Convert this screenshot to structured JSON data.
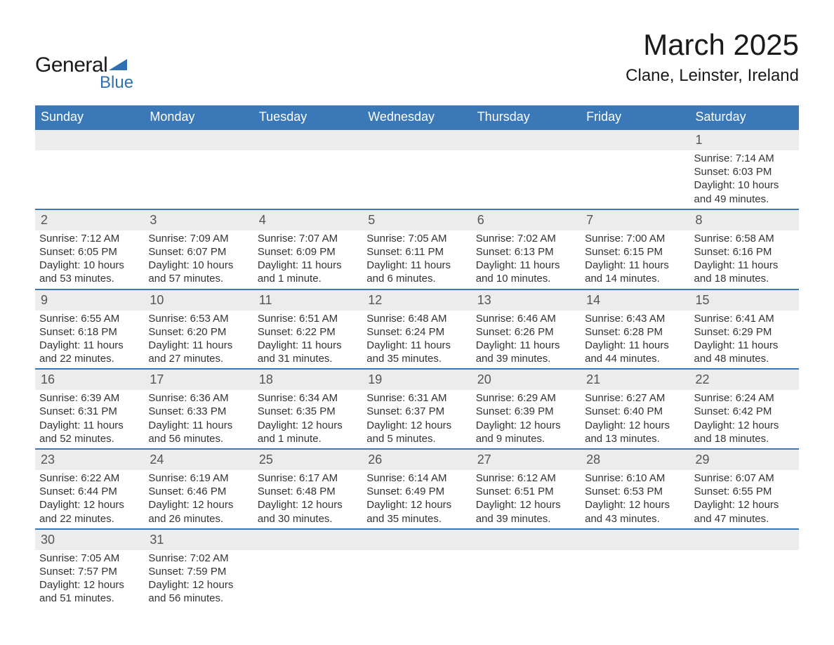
{
  "logo": {
    "line1": "General",
    "line2": "Blue"
  },
  "title": "March 2025",
  "location": "Clane, Leinster, Ireland",
  "weekdays": [
    "Sunday",
    "Monday",
    "Tuesday",
    "Wednesday",
    "Thursday",
    "Friday",
    "Saturday"
  ],
  "labels": {
    "sunrise": "Sunrise: ",
    "sunset": "Sunset: ",
    "daylight": "Daylight: "
  },
  "style": {
    "header_bg": "#3a78b8",
    "header_fg": "#ffffff",
    "daynum_bg": "#ececec",
    "daynum_border": "#3a78b8",
    "text_color": "#333333",
    "font_family": "Arial, Helvetica, sans-serif",
    "month_title_size_pt": 32,
    "location_size_pt": 18,
    "weekday_size_pt": 14,
    "cell_size_pt": 11
  },
  "weeks": [
    [
      null,
      null,
      null,
      null,
      null,
      null,
      {
        "n": "1",
        "sr": "7:14 AM",
        "ss": "6:03 PM",
        "dl": "10 hours and 49 minutes."
      }
    ],
    [
      {
        "n": "2",
        "sr": "7:12 AM",
        "ss": "6:05 PM",
        "dl": "10 hours and 53 minutes."
      },
      {
        "n": "3",
        "sr": "7:09 AM",
        "ss": "6:07 PM",
        "dl": "10 hours and 57 minutes."
      },
      {
        "n": "4",
        "sr": "7:07 AM",
        "ss": "6:09 PM",
        "dl": "11 hours and 1 minute."
      },
      {
        "n": "5",
        "sr": "7:05 AM",
        "ss": "6:11 PM",
        "dl": "11 hours and 6 minutes."
      },
      {
        "n": "6",
        "sr": "7:02 AM",
        "ss": "6:13 PM",
        "dl": "11 hours and 10 minutes."
      },
      {
        "n": "7",
        "sr": "7:00 AM",
        "ss": "6:15 PM",
        "dl": "11 hours and 14 minutes."
      },
      {
        "n": "8",
        "sr": "6:58 AM",
        "ss": "6:16 PM",
        "dl": "11 hours and 18 minutes."
      }
    ],
    [
      {
        "n": "9",
        "sr": "6:55 AM",
        "ss": "6:18 PM",
        "dl": "11 hours and 22 minutes."
      },
      {
        "n": "10",
        "sr": "6:53 AM",
        "ss": "6:20 PM",
        "dl": "11 hours and 27 minutes."
      },
      {
        "n": "11",
        "sr": "6:51 AM",
        "ss": "6:22 PM",
        "dl": "11 hours and 31 minutes."
      },
      {
        "n": "12",
        "sr": "6:48 AM",
        "ss": "6:24 PM",
        "dl": "11 hours and 35 minutes."
      },
      {
        "n": "13",
        "sr": "6:46 AM",
        "ss": "6:26 PM",
        "dl": "11 hours and 39 minutes."
      },
      {
        "n": "14",
        "sr": "6:43 AM",
        "ss": "6:28 PM",
        "dl": "11 hours and 44 minutes."
      },
      {
        "n": "15",
        "sr": "6:41 AM",
        "ss": "6:29 PM",
        "dl": "11 hours and 48 minutes."
      }
    ],
    [
      {
        "n": "16",
        "sr": "6:39 AM",
        "ss": "6:31 PM",
        "dl": "11 hours and 52 minutes."
      },
      {
        "n": "17",
        "sr": "6:36 AM",
        "ss": "6:33 PM",
        "dl": "11 hours and 56 minutes."
      },
      {
        "n": "18",
        "sr": "6:34 AM",
        "ss": "6:35 PM",
        "dl": "12 hours and 1 minute."
      },
      {
        "n": "19",
        "sr": "6:31 AM",
        "ss": "6:37 PM",
        "dl": "12 hours and 5 minutes."
      },
      {
        "n": "20",
        "sr": "6:29 AM",
        "ss": "6:39 PM",
        "dl": "12 hours and 9 minutes."
      },
      {
        "n": "21",
        "sr": "6:27 AM",
        "ss": "6:40 PM",
        "dl": "12 hours and 13 minutes."
      },
      {
        "n": "22",
        "sr": "6:24 AM",
        "ss": "6:42 PM",
        "dl": "12 hours and 18 minutes."
      }
    ],
    [
      {
        "n": "23",
        "sr": "6:22 AM",
        "ss": "6:44 PM",
        "dl": "12 hours and 22 minutes."
      },
      {
        "n": "24",
        "sr": "6:19 AM",
        "ss": "6:46 PM",
        "dl": "12 hours and 26 minutes."
      },
      {
        "n": "25",
        "sr": "6:17 AM",
        "ss": "6:48 PM",
        "dl": "12 hours and 30 minutes."
      },
      {
        "n": "26",
        "sr": "6:14 AM",
        "ss": "6:49 PM",
        "dl": "12 hours and 35 minutes."
      },
      {
        "n": "27",
        "sr": "6:12 AM",
        "ss": "6:51 PM",
        "dl": "12 hours and 39 minutes."
      },
      {
        "n": "28",
        "sr": "6:10 AM",
        "ss": "6:53 PM",
        "dl": "12 hours and 43 minutes."
      },
      {
        "n": "29",
        "sr": "6:07 AM",
        "ss": "6:55 PM",
        "dl": "12 hours and 47 minutes."
      }
    ],
    [
      {
        "n": "30",
        "sr": "7:05 AM",
        "ss": "7:57 PM",
        "dl": "12 hours and 51 minutes."
      },
      {
        "n": "31",
        "sr": "7:02 AM",
        "ss": "7:59 PM",
        "dl": "12 hours and 56 minutes."
      },
      null,
      null,
      null,
      null,
      null
    ]
  ]
}
